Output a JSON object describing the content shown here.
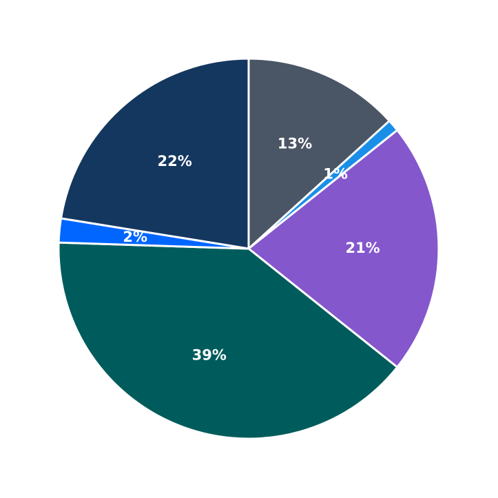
{
  "chart_data": {
    "type": "pie",
    "values": [
      13,
      1,
      21,
      39,
      2,
      22
    ],
    "value_labels": [
      "13%",
      "1%",
      "21%",
      "39%",
      "2%",
      "22%"
    ],
    "colors": [
      "#4a5565",
      "#1a8fe8",
      "#8457cc",
      "#005c5c",
      "#0066ff",
      "#14375f"
    ]
  }
}
